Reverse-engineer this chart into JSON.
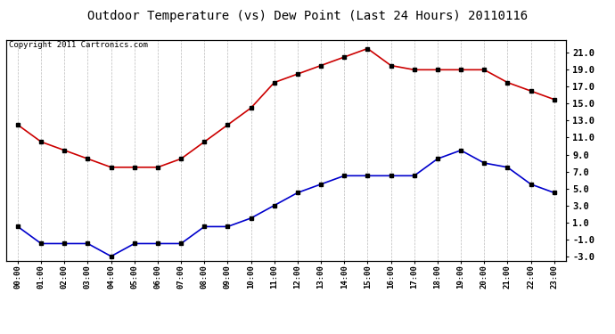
{
  "title": "Outdoor Temperature (vs) Dew Point (Last 24 Hours) 20110116",
  "copyright_text": "Copyright 2011 Cartronics.com",
  "hours": [
    "00:00",
    "01:00",
    "02:00",
    "03:00",
    "04:00",
    "05:00",
    "06:00",
    "07:00",
    "08:00",
    "09:00",
    "10:00",
    "11:00",
    "12:00",
    "13:00",
    "14:00",
    "15:00",
    "16:00",
    "17:00",
    "18:00",
    "19:00",
    "20:00",
    "21:00",
    "22:00",
    "23:00"
  ],
  "temp": [
    12.5,
    10.5,
    9.5,
    8.5,
    7.5,
    7.5,
    7.5,
    8.5,
    10.5,
    12.5,
    14.5,
    17.5,
    18.5,
    19.5,
    20.5,
    21.5,
    19.5,
    19.0,
    19.0,
    19.0,
    19.0,
    17.5,
    16.5,
    15.5
  ],
  "dew": [
    0.5,
    -1.5,
    -1.5,
    -1.5,
    -3.0,
    -1.5,
    -1.5,
    -1.5,
    0.5,
    0.5,
    1.5,
    3.0,
    4.5,
    5.5,
    6.5,
    6.5,
    6.5,
    6.5,
    8.5,
    9.5,
    8.0,
    7.5,
    5.5,
    4.5
  ],
  "temp_color": "#cc0000",
  "dew_color": "#0000cc",
  "background_color": "#ffffff",
  "plot_bg_color": "#ffffff",
  "grid_color": "#bbbbbb",
  "ylim": [
    -3.5,
    22.5
  ],
  "yticks_right": [
    -3.0,
    -1.0,
    1.0,
    3.0,
    5.0,
    7.0,
    9.0,
    11.0,
    13.0,
    15.0,
    17.0,
    19.0,
    21.0
  ],
  "title_fontsize": 10,
  "copyright_fontsize": 6.5,
  "marker": "s",
  "marker_size": 3,
  "line_width": 1.2
}
